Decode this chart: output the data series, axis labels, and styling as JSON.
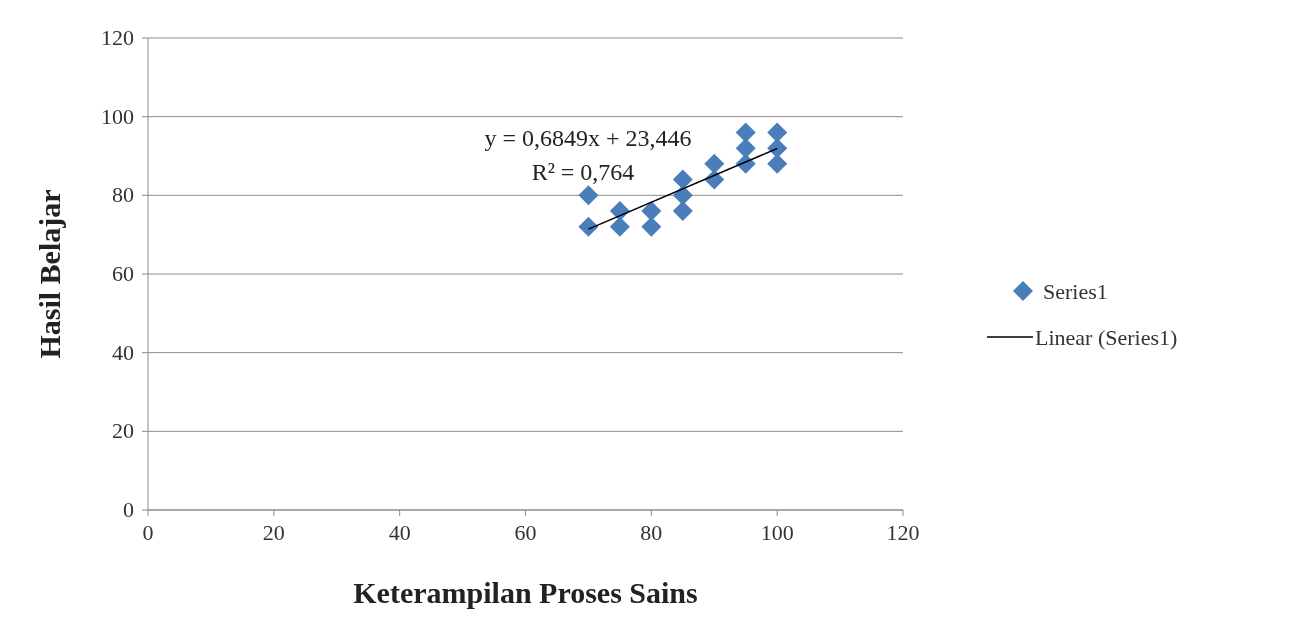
{
  "chart_data": {
    "type": "scatter",
    "xlabel": "Keterampilan Proses Sains",
    "ylabel": "Hasil Belajar",
    "xlim": [
      0,
      120
    ],
    "xticks": [
      0,
      20,
      40,
      60,
      80,
      100,
      120
    ],
    "ylim": [
      0,
      120
    ],
    "yticks": [
      0,
      20,
      40,
      60,
      80,
      100,
      120
    ],
    "grid": "y",
    "legend": "right",
    "annotations": [
      "y = 0,6849x + 23,446",
      "R² = 0,764"
    ],
    "series": [
      {
        "name": "Series1",
        "marker": "diamond",
        "color": "#4a7ebb",
        "x": [
          70,
          70,
          75,
          75,
          80,
          80,
          85,
          85,
          85,
          90,
          90,
          95,
          95,
          95,
          100,
          100,
          100
        ],
        "values": [
          80,
          72,
          76,
          72,
          76,
          72,
          84,
          80,
          76,
          88,
          84,
          96,
          92,
          88,
          96,
          92,
          88
        ]
      },
      {
        "name": "Linear (Series1)",
        "type": "line",
        "color": "#000000",
        "x": [
          70,
          100
        ],
        "values": [
          71.4,
          91.9
        ]
      }
    ]
  }
}
